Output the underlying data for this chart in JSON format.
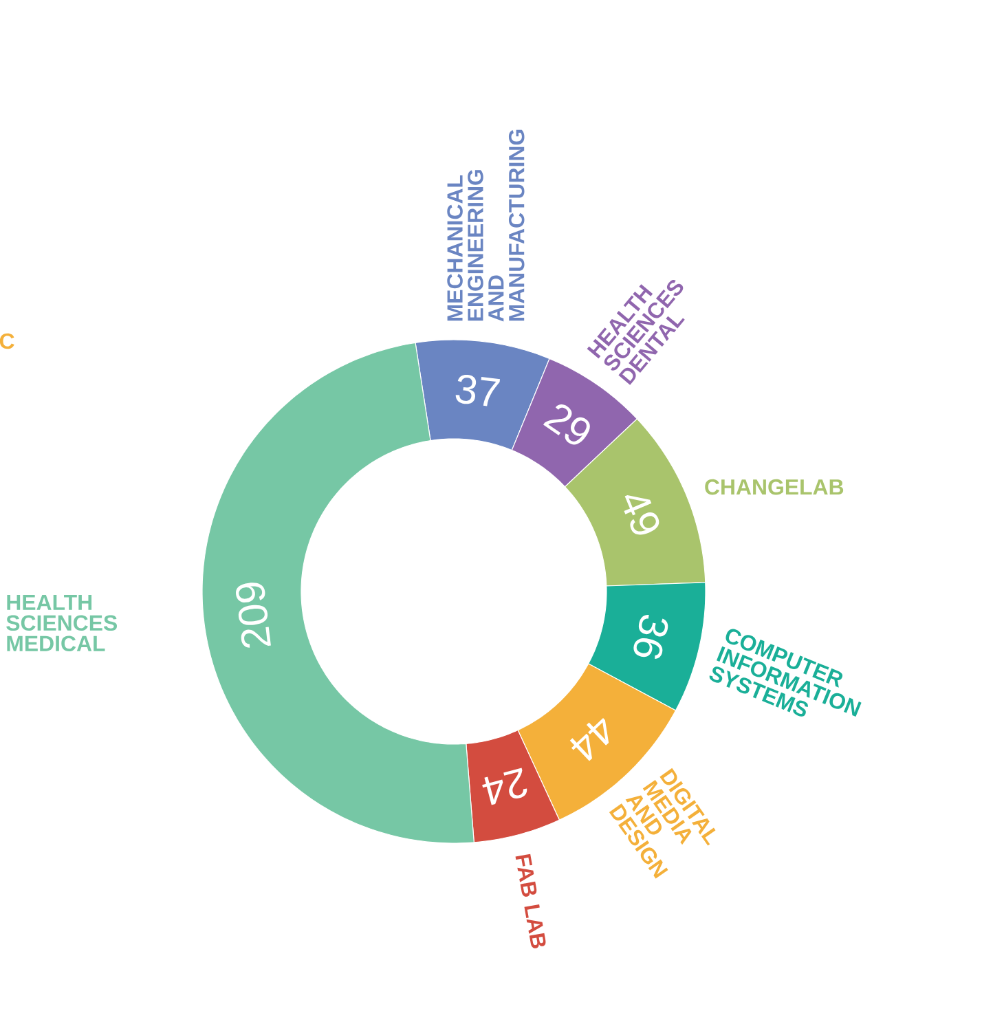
{
  "chart_data": {
    "type": "donut",
    "categories": [
      "MECHANICAL ENGINEERING AND MANUFACTURING",
      "HEALTH SCIENCES DENTAL",
      "CHANGELAB",
      "COMPUTER INFORMATION SYSTEMS",
      "DIGITAL MEDIA AND DESIGN",
      "FAB LAB",
      "HEALTH SCIENCES MEDICAL"
    ],
    "values": [
      37,
      29,
      49,
      36,
      44,
      24,
      209
    ],
    "colors": [
      "#6a85c2",
      "#9066ae",
      "#a9c46c",
      "#1aaf98",
      "#f4b03a",
      "#d34c3f",
      "#76c7a5"
    ],
    "data_labels": true,
    "annotations": [
      "C"
    ]
  }
}
